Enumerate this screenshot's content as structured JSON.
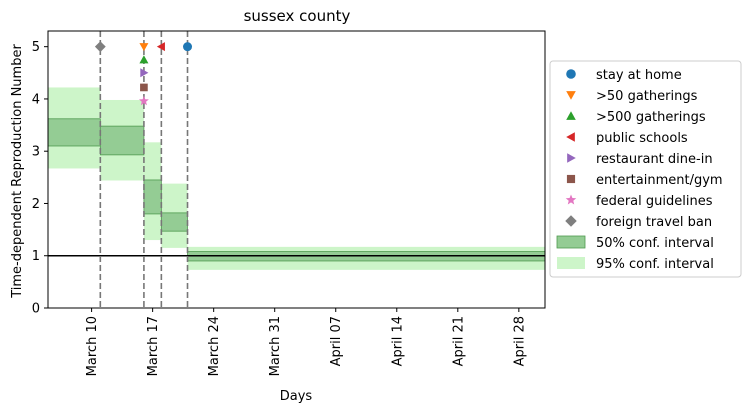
{
  "chart_data": {
    "type": "step-interval",
    "title": "sussex county",
    "xlabel": "Days",
    "ylabel": "Time-dependent Reproduction Number",
    "x_is_date": true,
    "xlim": [
      "2020-03-05",
      "2020-05-01"
    ],
    "ylim": [
      0,
      5.3
    ],
    "yticks": [
      0,
      1,
      2,
      3,
      4,
      5
    ],
    "xticks": [
      {
        "date": "2020-03-10",
        "label": "March 10"
      },
      {
        "date": "2020-03-17",
        "label": "March 17"
      },
      {
        "date": "2020-03-24",
        "label": "March 24"
      },
      {
        "date": "2020-03-31",
        "label": "March 31"
      },
      {
        "date": "2020-04-07",
        "label": "April 07"
      },
      {
        "date": "2020-04-14",
        "label": "April 14"
      },
      {
        "date": "2020-04-21",
        "label": "April 21"
      },
      {
        "date": "2020-04-28",
        "label": "April 28"
      }
    ],
    "reference_line": {
      "y": 1,
      "color": "#000000"
    },
    "segments": [
      {
        "start": "2020-03-05",
        "end": "2020-03-11",
        "ci50": [
          3.1,
          3.62
        ],
        "ci95": [
          2.67,
          4.22
        ]
      },
      {
        "start": "2020-03-11",
        "end": "2020-03-16",
        "ci50": [
          2.93,
          3.48
        ],
        "ci95": [
          2.44,
          3.98
        ]
      },
      {
        "start": "2020-03-16",
        "end": "2020-03-18",
        "ci50": [
          1.8,
          2.45
        ],
        "ci95": [
          1.3,
          3.17
        ]
      },
      {
        "start": "2020-03-18",
        "end": "2020-03-21",
        "ci50": [
          1.47,
          1.82
        ],
        "ci95": [
          1.15,
          2.38
        ]
      },
      {
        "start": "2020-03-21",
        "end": "2020-05-01",
        "ci50": [
          0.9,
          1.08
        ],
        "ci95": [
          0.73,
          1.17
        ]
      }
    ],
    "interventions": [
      {
        "name": "stay at home",
        "date": "2020-03-21",
        "y": 5.0,
        "marker": "circle",
        "color": "#1f77b4"
      },
      {
        "name": ">50 gatherings",
        "date": "2020-03-16",
        "y": 5.0,
        "marker": "triangle-down",
        "color": "#ff7f0e"
      },
      {
        "name": ">500 gatherings",
        "date": "2020-03-16",
        "y": 4.75,
        "marker": "triangle-up",
        "color": "#2ca02c"
      },
      {
        "name": "public schools",
        "date": "2020-03-18",
        "y": 5.0,
        "marker": "triangle-left",
        "color": "#d62728"
      },
      {
        "name": "restaurant dine-in",
        "date": "2020-03-16",
        "y": 4.5,
        "marker": "triangle-right",
        "color": "#9467bd"
      },
      {
        "name": "entertainment/gym",
        "date": "2020-03-16",
        "y": 4.22,
        "marker": "square",
        "color": "#8c564b"
      },
      {
        "name": "federal guidelines",
        "date": "2020-03-16",
        "y": 3.96,
        "marker": "star",
        "color": "#e377c2"
      },
      {
        "name": "foreign travel ban",
        "date": "2020-03-11",
        "y": 5.0,
        "marker": "diamond",
        "color": "#7f7f7f"
      }
    ],
    "vlines": [
      "2020-03-11",
      "2020-03-16",
      "2020-03-18",
      "2020-03-21"
    ],
    "legend": {
      "placement": "right",
      "ci50_label": "50% conf. interval",
      "ci95_label": "95% conf. interval"
    },
    "colors": {
      "ci50_fill": "#94cc94",
      "ci50_edge": "#4f9a4f",
      "ci95_fill": "#cdf5c9",
      "vline": "#777777"
    }
  }
}
